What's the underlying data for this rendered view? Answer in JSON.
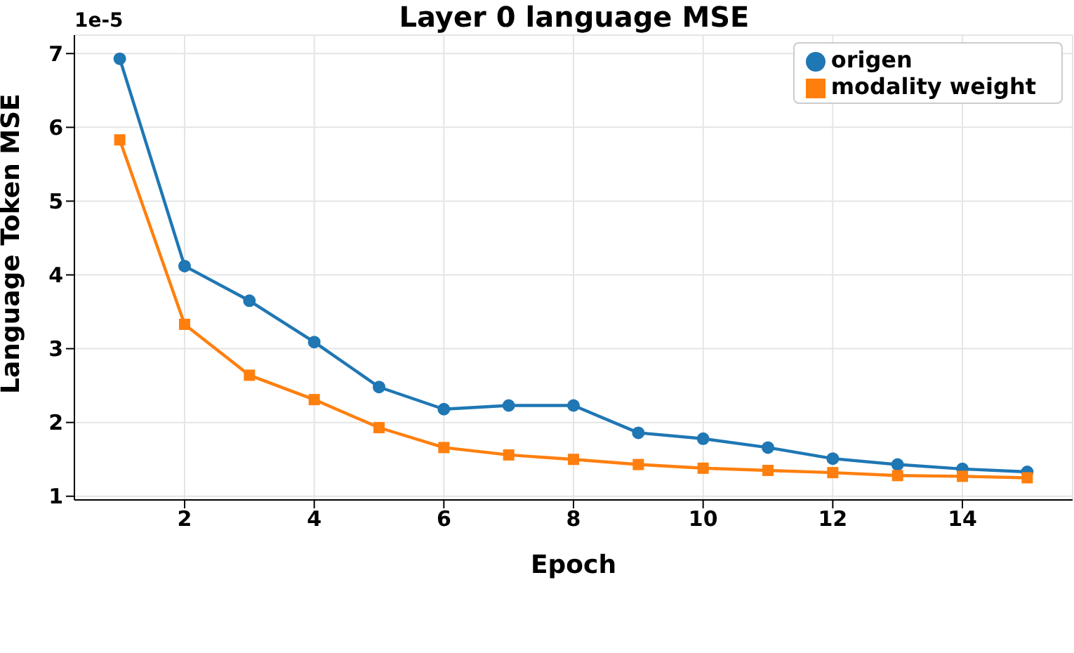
{
  "chart_data": {
    "type": "line",
    "title": "Layer 0 language MSE",
    "xlabel": "Epoch",
    "ylabel": "Language Token MSE",
    "annotations": [
      "1e-5"
    ],
    "x": [
      1,
      2,
      3,
      4,
      5,
      6,
      7,
      8,
      9,
      10,
      11,
      12,
      13,
      14,
      15
    ],
    "series": [
      {
        "name": "origen",
        "color": "#1f77b4",
        "marker": "circle",
        "values": [
          6.93,
          4.12,
          3.65,
          3.09,
          2.48,
          2.18,
          2.23,
          2.23,
          1.86,
          1.78,
          1.66,
          1.51,
          1.43,
          1.37,
          1.33
        ]
      },
      {
        "name": "modality weight",
        "color": "#ff7f0e",
        "marker": "square",
        "values": [
          5.83,
          3.33,
          2.64,
          2.31,
          1.93,
          1.66,
          1.56,
          1.5,
          1.43,
          1.38,
          1.35,
          1.32,
          1.28,
          1.27,
          1.25
        ]
      }
    ],
    "xlim": [
      0.3,
      15.7
    ],
    "xticks": [
      2,
      4,
      6,
      8,
      10,
      12,
      14
    ],
    "ylim": [
      0.95,
      7.25
    ],
    "yticks": [
      1,
      2,
      3,
      4,
      5,
      6,
      7
    ],
    "grid": true,
    "legend": "top right",
    "line_style": "solid"
  }
}
